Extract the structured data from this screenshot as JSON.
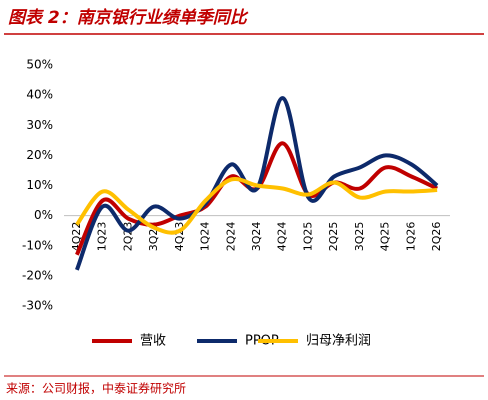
{
  "chart_data": {
    "type": "line",
    "title": "图表 2：南京银行业绩单季同比",
    "source": "来源：公司财报，中泰证券研究所",
    "categories": [
      "4Q22",
      "1Q23",
      "2Q23",
      "3Q23",
      "4Q23",
      "1Q24",
      "2Q24",
      "3Q24",
      "4Q24",
      "1Q25",
      "2Q25",
      "3Q25",
      "4Q25",
      "1Q26",
      "2Q26"
    ],
    "series": [
      {
        "name": "营收",
        "color": "#c00000",
        "values": [
          -13,
          5,
          -1,
          -3,
          0,
          3,
          13,
          9,
          24,
          7,
          11,
          9,
          16,
          13,
          9
        ]
      },
      {
        "name": "PPOP",
        "color": "#0d2a6b",
        "values": [
          -18,
          3,
          -5,
          3,
          -1,
          4,
          17,
          9,
          39,
          6,
          13,
          16,
          20,
          17,
          10
        ]
      },
      {
        "name": "归母净利润",
        "color": "#ffc000",
        "values": [
          -3,
          8,
          2,
          -4,
          -5,
          5,
          12,
          10,
          9,
          7,
          11,
          6,
          8,
          8,
          8.5
        ]
      }
    ],
    "ylim": [
      -30,
      50
    ],
    "yticks": [
      {
        "value": -30,
        "label": "-30%"
      },
      {
        "value": -20,
        "label": "-20%"
      },
      {
        "value": -10,
        "label": "-10%"
      },
      {
        "value": 0,
        "label": "0%"
      },
      {
        "value": 10,
        "label": "10%"
      },
      {
        "value": 20,
        "label": "20%"
      },
      {
        "value": 30,
        "label": "30%"
      },
      {
        "value": 40,
        "label": "40%"
      },
      {
        "value": 50,
        "label": "50%"
      }
    ],
    "grid": false,
    "legend": "bottom"
  }
}
